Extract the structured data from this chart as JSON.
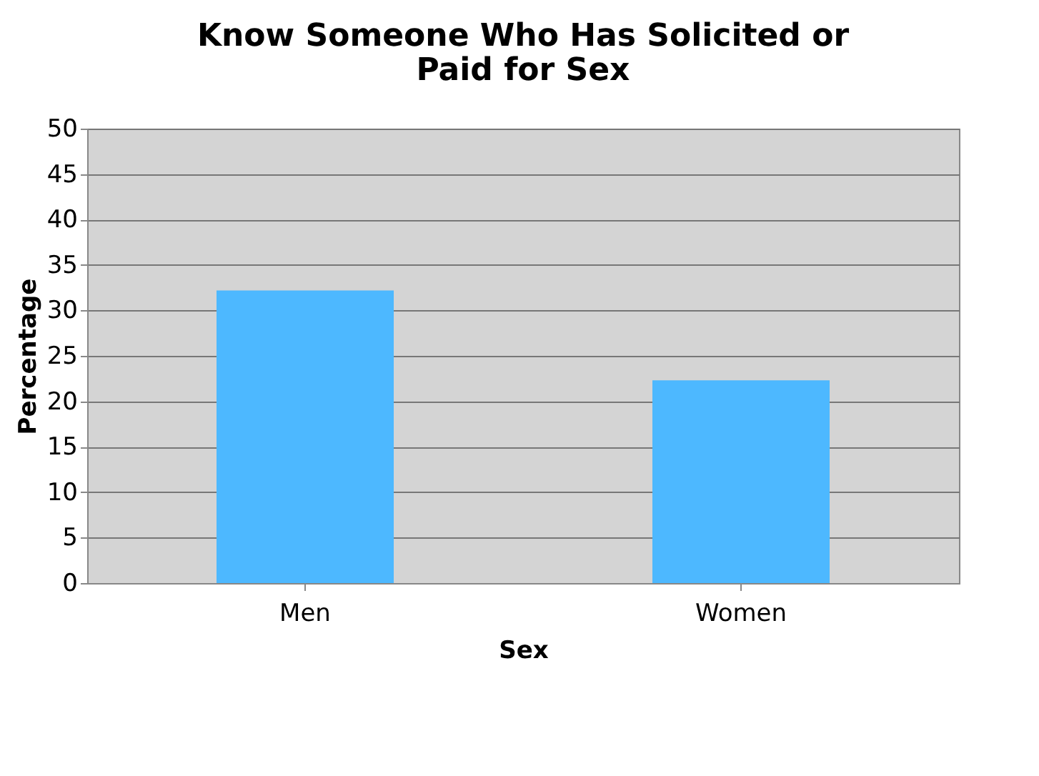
{
  "chart_data": {
    "type": "bar",
    "title": "Know Someone Who Has Solicited or Paid for Sex",
    "xlabel": "Sex",
    "ylabel": "Percentage",
    "categories": [
      "Men",
      "Women"
    ],
    "series": [
      {
        "color": "#4db8ff",
        "values": [
          32.2,
          22.3
        ]
      }
    ],
    "ylim": [
      0,
      50
    ],
    "yticks": [
      0,
      5,
      10,
      15,
      20,
      25,
      30,
      35,
      40,
      45,
      50
    ],
    "grid": "y"
  }
}
